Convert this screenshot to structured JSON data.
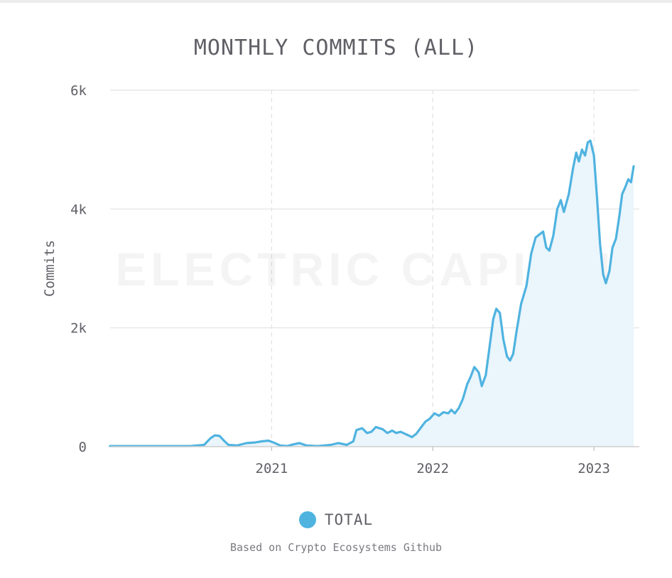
{
  "chart_data": {
    "type": "area",
    "title": "MONTHLY COMMITS (ALL)",
    "ylabel": "Commits",
    "xlabel": "",
    "x_ticks": [
      "2021",
      "2022",
      "2023"
    ],
    "y_ticks": [
      "0",
      "2k",
      "4k",
      "6k"
    ],
    "ylim": [
      0,
      6000
    ],
    "xlim": [
      "2020-01-01",
      "2023-04-01"
    ],
    "grid": true,
    "legend_position": "bottom",
    "series": [
      {
        "name": "TOTAL",
        "color": "#4fb3e0",
        "fill": "#eaf5fc",
        "points": [
          [
            "2020-01-01",
            10
          ],
          [
            "2020-03-01",
            10
          ],
          [
            "2020-05-01",
            10
          ],
          [
            "2020-07-01",
            10
          ],
          [
            "2020-08-01",
            30
          ],
          [
            "2020-08-15",
            140
          ],
          [
            "2020-08-25",
            190
          ],
          [
            "2020-09-05",
            180
          ],
          [
            "2020-09-15",
            100
          ],
          [
            "2020-09-25",
            30
          ],
          [
            "2020-10-15",
            20
          ],
          [
            "2020-11-05",
            60
          ],
          [
            "2020-11-25",
            70
          ],
          [
            "2020-12-10",
            90
          ],
          [
            "2020-12-25",
            100
          ],
          [
            "2021-01-05",
            70
          ],
          [
            "2021-01-20",
            20
          ],
          [
            "2021-02-05",
            10
          ],
          [
            "2021-02-20",
            40
          ],
          [
            "2021-03-05",
            60
          ],
          [
            "2021-03-20",
            20
          ],
          [
            "2021-04-15",
            10
          ],
          [
            "2021-05-15",
            30
          ],
          [
            "2021-06-01",
            60
          ],
          [
            "2021-06-20",
            30
          ],
          [
            "2021-07-05",
            90
          ],
          [
            "2021-07-12",
            280
          ],
          [
            "2021-07-25",
            310
          ],
          [
            "2021-08-05",
            230
          ],
          [
            "2021-08-15",
            250
          ],
          [
            "2021-08-25",
            330
          ],
          [
            "2021-09-10",
            290
          ],
          [
            "2021-09-20",
            230
          ],
          [
            "2021-10-01",
            270
          ],
          [
            "2021-10-10",
            230
          ],
          [
            "2021-10-20",
            250
          ],
          [
            "2021-11-01",
            210
          ],
          [
            "2021-11-15",
            160
          ],
          [
            "2021-11-25",
            220
          ],
          [
            "2021-12-05",
            320
          ],
          [
            "2021-12-15",
            420
          ],
          [
            "2021-12-25",
            470
          ],
          [
            "2022-01-05",
            560
          ],
          [
            "2022-01-15",
            520
          ],
          [
            "2022-01-25",
            580
          ],
          [
            "2022-02-05",
            560
          ],
          [
            "2022-02-12",
            620
          ],
          [
            "2022-02-20",
            560
          ],
          [
            "2022-03-01",
            650
          ],
          [
            "2022-03-10",
            800
          ],
          [
            "2022-03-20",
            1050
          ],
          [
            "2022-03-28",
            1180
          ],
          [
            "2022-04-05",
            1340
          ],
          [
            "2022-04-15",
            1250
          ],
          [
            "2022-04-22",
            1020
          ],
          [
            "2022-05-01",
            1200
          ],
          [
            "2022-05-10",
            1700
          ],
          [
            "2022-05-18",
            2150
          ],
          [
            "2022-05-25",
            2320
          ],
          [
            "2022-06-02",
            2250
          ],
          [
            "2022-06-10",
            1800
          ],
          [
            "2022-06-18",
            1520
          ],
          [
            "2022-06-25",
            1450
          ],
          [
            "2022-07-02",
            1560
          ],
          [
            "2022-07-10",
            1950
          ],
          [
            "2022-07-20",
            2400
          ],
          [
            "2022-08-01",
            2700
          ],
          [
            "2022-08-12",
            3250
          ],
          [
            "2022-08-22",
            3520
          ],
          [
            "2022-09-01",
            3580
          ],
          [
            "2022-09-08",
            3620
          ],
          [
            "2022-09-15",
            3350
          ],
          [
            "2022-09-22",
            3300
          ],
          [
            "2022-10-01",
            3550
          ],
          [
            "2022-10-10",
            4000
          ],
          [
            "2022-10-18",
            4150
          ],
          [
            "2022-10-25",
            3950
          ],
          [
            "2022-11-05",
            4250
          ],
          [
            "2022-11-15",
            4700
          ],
          [
            "2022-11-22",
            4950
          ],
          [
            "2022-11-28",
            4800
          ],
          [
            "2022-12-05",
            5000
          ],
          [
            "2022-12-12",
            4900
          ],
          [
            "2022-12-18",
            5120
          ],
          [
            "2022-12-24",
            5150
          ],
          [
            "2023-01-01",
            4900
          ],
          [
            "2023-01-08",
            4200
          ],
          [
            "2023-01-15",
            3400
          ],
          [
            "2023-01-22",
            2900
          ],
          [
            "2023-01-28",
            2750
          ],
          [
            "2023-02-05",
            2950
          ],
          [
            "2023-02-12",
            3350
          ],
          [
            "2023-02-20",
            3500
          ],
          [
            "2023-02-28",
            3900
          ],
          [
            "2023-03-06",
            4250
          ],
          [
            "2023-03-12",
            4350
          ],
          [
            "2023-03-20",
            4500
          ],
          [
            "2023-03-26",
            4450
          ],
          [
            "2023-04-01",
            4720
          ]
        ]
      }
    ]
  },
  "watermark": "ELECTRIC CAPITAL",
  "legend": {
    "label": "TOTAL",
    "color": "#4fb3e0"
  },
  "footer": {
    "source": "Based on Crypto Ecosystems Github"
  },
  "colors": {
    "grid": "#e2e2e2",
    "text": "#5f5f66",
    "line": "#4fb3e0",
    "area": "#eaf5fc"
  }
}
